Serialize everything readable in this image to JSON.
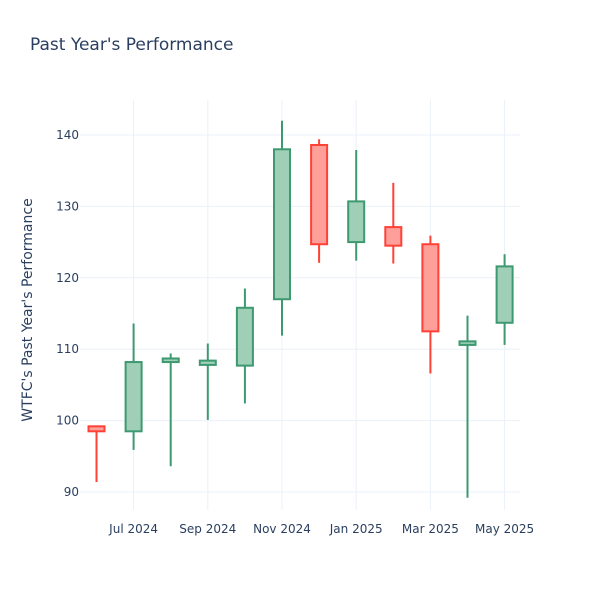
{
  "chart_data": {
    "type": "candlestick",
    "title": "Past Year's Performance",
    "xlabel": "",
    "ylabel": "WTFC's Past Year's Performance",
    "ylim": [
      87,
      145
    ],
    "y_ticks": [
      90,
      100,
      110,
      120,
      130,
      140
    ],
    "x_ticks": [
      {
        "month_index": 1,
        "label": "Jul 2024"
      },
      {
        "month_index": 3,
        "label": "Sep 2024"
      },
      {
        "month_index": 5,
        "label": "Nov 2024"
      },
      {
        "month_index": 7,
        "label": "Jan 2025"
      },
      {
        "month_index": 9,
        "label": "Mar 2025"
      },
      {
        "month_index": 11,
        "label": "May 2025"
      }
    ],
    "candles": [
      {
        "month": "Jun 2024",
        "month_index": 0,
        "open": 99.2,
        "high": 99.2,
        "low": 91.4,
        "close": 98.5
      },
      {
        "month": "Jul 2024",
        "month_index": 1,
        "open": 98.5,
        "high": 113.6,
        "low": 95.9,
        "close": 108.2
      },
      {
        "month": "Aug 2024",
        "month_index": 2,
        "open": 108.2,
        "high": 109.4,
        "low": 93.6,
        "close": 108.7
      },
      {
        "month": "Sep 2024",
        "month_index": 3,
        "open": 107.8,
        "high": 110.8,
        "low": 100.1,
        "close": 108.4
      },
      {
        "month": "Oct 2024",
        "month_index": 4,
        "open": 107.7,
        "high": 118.5,
        "low": 102.4,
        "close": 115.8
      },
      {
        "month": "Nov 2024",
        "month_index": 5,
        "open": 117.0,
        "high": 142.0,
        "low": 111.9,
        "close": 138.0
      },
      {
        "month": "Dec 2024",
        "month_index": 6,
        "open": 138.6,
        "high": 139.4,
        "low": 122.1,
        "close": 124.7
      },
      {
        "month": "Jan 2025",
        "month_index": 7,
        "open": 125.0,
        "high": 137.9,
        "low": 122.4,
        "close": 130.7
      },
      {
        "month": "Feb 2025",
        "month_index": 8,
        "open": 127.1,
        "high": 133.3,
        "low": 122.0,
        "close": 124.5
      },
      {
        "month": "Mar 2025",
        "month_index": 9,
        "open": 124.7,
        "high": 125.9,
        "low": 106.6,
        "close": 112.5
      },
      {
        "month": "Apr 2025",
        "month_index": 10,
        "open": 110.6,
        "high": 114.7,
        "low": 89.2,
        "close": 111.1
      },
      {
        "month": "May 2025",
        "month_index": 11,
        "open": 113.7,
        "high": 123.3,
        "low": 110.6,
        "close": 121.6
      }
    ],
    "colors": {
      "increasing_line": "#3d9970",
      "increasing_fill": "#9fcfb7",
      "decreasing_line": "#ff4136",
      "decreasing_fill": "#ff9f9a",
      "grid": "#ebf0f8",
      "text": "#2a3f5f"
    },
    "grid": true,
    "legend": "none"
  }
}
